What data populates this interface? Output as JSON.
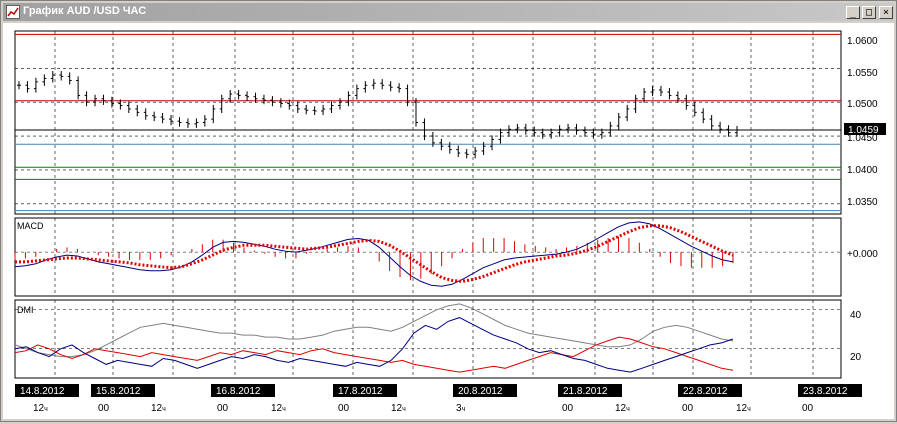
{
  "window": {
    "title": "График AUD /USD  ЧАС",
    "buttons": {
      "minimize": "_",
      "maximize": "□",
      "close": "×"
    }
  },
  "price_axis": {
    "ticks": [
      "1.0600",
      "1.0550",
      "1.0500",
      "1.0450",
      "1.0400",
      "1.0350"
    ],
    "current_price": "1.0459"
  },
  "panels": {
    "macd": {
      "label": "MACD",
      "zero_label": "+0.000"
    },
    "dmi": {
      "label": "DMI",
      "ticks": [
        "40",
        "20"
      ]
    }
  },
  "time_axis": {
    "dates": [
      "14.8.2012",
      "15.8.2012",
      "16.8.2012",
      "17.8.2012",
      "20.8.2012",
      "21.8.2012",
      "22.8.2012",
      "23.8.2012"
    ],
    "hours": [
      {
        "value": "12",
        "unit": "ч"
      },
      {
        "value": "00",
        "unit": ""
      },
      {
        "value": "12",
        "unit": "ч"
      },
      {
        "value": "00",
        "unit": ""
      },
      {
        "value": "12",
        "unit": "ч"
      },
      {
        "value": "00",
        "unit": ""
      },
      {
        "value": "12",
        "unit": "ч"
      },
      {
        "value": "3",
        "unit": "ч"
      },
      {
        "value": "00",
        "unit": ""
      },
      {
        "value": "12",
        "unit": "ч"
      },
      {
        "value": "00",
        "unit": ""
      },
      {
        "value": "12",
        "unit": "ч"
      },
      {
        "value": "00",
        "unit": ""
      }
    ]
  },
  "chart_data": {
    "type": "line",
    "price": {
      "ylim": [
        1.0335,
        1.0605
      ],
      "closes": [
        1.0525,
        1.052,
        1.053,
        1.0535,
        1.054,
        1.0538,
        1.0532,
        1.051,
        1.05,
        1.0505,
        1.0502,
        1.0498,
        1.0495,
        1.049,
        1.0485,
        1.048,
        1.0478,
        1.0475,
        1.0472,
        1.047,
        1.0468,
        1.047,
        1.0475,
        1.049,
        1.0505,
        1.0512,
        1.051,
        1.0508,
        1.0505,
        1.0503,
        1.05,
        1.0498,
        1.0495,
        1.049,
        1.0488,
        1.0487,
        1.049,
        1.0495,
        1.05,
        1.051,
        1.052,
        1.0525,
        1.0528,
        1.0525,
        1.0522,
        1.052,
        1.05,
        1.047,
        1.045,
        1.044,
        1.0435,
        1.043,
        1.0425,
        1.0423,
        1.0428,
        1.0435,
        1.0445,
        1.0455,
        1.046,
        1.0462,
        1.0458,
        1.0455,
        1.0452,
        1.0455,
        1.046,
        1.0462,
        1.0458,
        1.0455,
        1.0452,
        1.0455,
        1.0465,
        1.0478,
        1.049,
        1.0505,
        1.0515,
        1.0518,
        1.0515,
        1.051,
        1.0505,
        1.0495,
        1.0485,
        1.0475,
        1.0465,
        1.046,
        1.0455,
        1.0459
      ],
      "hlines_red": [
        1.06,
        1.0502
      ],
      "hline_black": 1.0459,
      "hlines_green": [
        1.0404,
        1.0386
      ],
      "hlines_steel": [
        1.0438,
        1.034
      ]
    },
    "macd": {
      "ylim": [
        -0.0045,
        0.0035
      ],
      "main": [
        -0.0015,
        -0.0014,
        -0.0012,
        -0.0008,
        -0.0005,
        -0.0003,
        -0.0004,
        -0.0007,
        -0.001,
        -0.0012,
        -0.0014,
        -0.0016,
        -0.0018,
        -0.0019,
        -0.0019,
        -0.0018,
        -0.0015,
        -0.001,
        -0.0003,
        0.0005,
        0.001,
        0.0011,
        0.001,
        0.0008,
        0.0006,
        0.0003,
        0.0001,
        0.0,
        0.0002,
        0.0004,
        0.0007,
        0.001,
        0.0013,
        0.0014,
        0.0012,
        0.0005,
        -0.0005,
        -0.0015,
        -0.0024,
        -0.003,
        -0.0034,
        -0.0035,
        -0.0033,
        -0.0028,
        -0.0022,
        -0.0016,
        -0.0012,
        -0.0008,
        -0.0006,
        -0.0005,
        -0.0004,
        -0.0003,
        -0.0002,
        0.0,
        0.0003,
        0.0008,
        0.0014,
        0.002,
        0.0026,
        0.003,
        0.0031,
        0.0029,
        0.0024,
        0.0018,
        0.0012,
        0.0006,
        0.0001,
        -0.0004,
        -0.0008,
        -0.001
      ],
      "signal": [
        -0.001,
        -0.001,
        -0.0009,
        -0.0008,
        -0.0007,
        -0.0006,
        -0.0006,
        -0.0007,
        -0.0008,
        -0.0009,
        -0.001,
        -0.0011,
        -0.0013,
        -0.0014,
        -0.0015,
        -0.0016,
        -0.0015,
        -0.0012,
        -0.0008,
        -0.0003,
        0.0002,
        0.0005,
        0.0007,
        0.0007,
        0.0007,
        0.0006,
        0.0005,
        0.0004,
        0.0003,
        0.0004,
        0.0005,
        0.0007,
        0.0009,
        0.0011,
        0.0012,
        0.0011,
        0.0007,
        0.0001,
        -0.0006,
        -0.0013,
        -0.002,
        -0.0026,
        -0.0029,
        -0.003,
        -0.0028,
        -0.0025,
        -0.0021,
        -0.0017,
        -0.0013,
        -0.001,
        -0.0008,
        -0.0006,
        -0.0004,
        -0.0003,
        -0.0001,
        0.0002,
        0.0006,
        0.0011,
        0.0016,
        0.0021,
        0.0025,
        0.0027,
        0.0027,
        0.0025,
        0.0021,
        0.0016,
        0.0011,
        0.0006,
        0.0001,
        -0.0003
      ]
    },
    "dmi": {
      "ylim": [
        5,
        45
      ],
      "adx": [
        22,
        20,
        18,
        17,
        16,
        16,
        17,
        19,
        22,
        25,
        28,
        31,
        32,
        33,
        32,
        31,
        30,
        29,
        28,
        28,
        27,
        27,
        26,
        26,
        25,
        25,
        26,
        27,
        29,
        30,
        31,
        31,
        30,
        29,
        31,
        34,
        37,
        40,
        42,
        43,
        41,
        38,
        35,
        32,
        30,
        28,
        27,
        26,
        25,
        24,
        23,
        22,
        21,
        21,
        22,
        25,
        29,
        31,
        32,
        31,
        29,
        27,
        25,
        24
      ],
      "plus_di": [
        20,
        21,
        18,
        16,
        20,
        22,
        18,
        15,
        12,
        14,
        13,
        12,
        11,
        15,
        14,
        12,
        10,
        12,
        14,
        16,
        15,
        17,
        16,
        14,
        13,
        15,
        14,
        13,
        12,
        11,
        13,
        12,
        11,
        14,
        20,
        28,
        32,
        30,
        34,
        36,
        33,
        30,
        27,
        25,
        23,
        20,
        18,
        19,
        17,
        15,
        14,
        12,
        10,
        9,
        8,
        10,
        12,
        14,
        16,
        18,
        20,
        22,
        23,
        25
      ],
      "minus_di": [
        18,
        19,
        22,
        20,
        17,
        15,
        17,
        20,
        19,
        18,
        17,
        16,
        18,
        17,
        16,
        15,
        14,
        16,
        18,
        17,
        19,
        18,
        17,
        19,
        18,
        17,
        19,
        20,
        18,
        17,
        16,
        15,
        14,
        13,
        14,
        12,
        11,
        10,
        9,
        8,
        9,
        10,
        11,
        10,
        12,
        14,
        16,
        18,
        17,
        16,
        19,
        22,
        24,
        26,
        25,
        23,
        21,
        20,
        18,
        16,
        14,
        12,
        10,
        9
      ]
    }
  }
}
